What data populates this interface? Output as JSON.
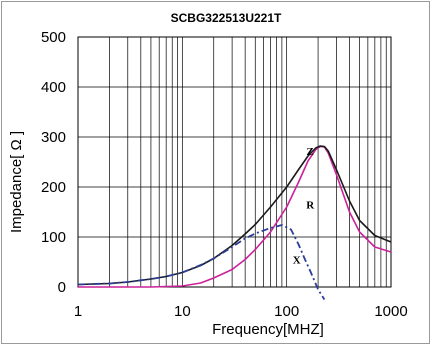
{
  "chart_data": {
    "type": "line",
    "title": "SCBG322513U221T",
    "xlabel": "Frequency[MHZ]",
    "ylabel": "Impedance[ Ω ]",
    "x_scale": "log",
    "xlim": [
      1,
      1000
    ],
    "ylim": [
      0,
      500
    ],
    "x_ticks": [
      1,
      10,
      100,
      1000
    ],
    "y_ticks": [
      0,
      100,
      200,
      300,
      400,
      500
    ],
    "grid": true,
    "series": [
      {
        "name": "Z",
        "color": "#1a1a1a",
        "style": "solid",
        "x": [
          1,
          2,
          3,
          5,
          7,
          10,
          15,
          20,
          30,
          40,
          50,
          70,
          100,
          130,
          160,
          190,
          210,
          230,
          250,
          300,
          400,
          500,
          700,
          1000
        ],
        "y": [
          5,
          7,
          10,
          16,
          21,
          29,
          43,
          57,
          83,
          106,
          125,
          160,
          200,
          235,
          262,
          278,
          282,
          281,
          272,
          235,
          172,
          133,
          103,
          90
        ]
      },
      {
        "name": "R",
        "color": "#cc2299",
        "style": "solid",
        "x": [
          1,
          5,
          10,
          15,
          20,
          30,
          40,
          50,
          70,
          100,
          130,
          160,
          190,
          210,
          230,
          250,
          300,
          400,
          500,
          700,
          1000
        ],
        "y": [
          0,
          0,
          2,
          8,
          18,
          35,
          55,
          75,
          110,
          160,
          210,
          252,
          275,
          281,
          280,
          268,
          225,
          150,
          110,
          80,
          70
        ]
      },
      {
        "name": "X",
        "color": "#2a3d99",
        "style": "dashed",
        "x": [
          1,
          2,
          3,
          5,
          7,
          10,
          15,
          20,
          30,
          40,
          50,
          70,
          90,
          110,
          130,
          150,
          170,
          200,
          230
        ],
        "y": [
          5,
          7,
          10,
          16,
          21,
          29,
          44,
          57,
          80,
          97,
          107,
          118,
          124,
          115,
          85,
          55,
          30,
          -5,
          -25
        ]
      }
    ],
    "series_label_anchor": {
      "Z": {
        "x": 168,
        "y": 272
      },
      "R": {
        "x": 168,
        "y": 165
      },
      "X": {
        "x": 125,
        "y": 55
      }
    }
  }
}
